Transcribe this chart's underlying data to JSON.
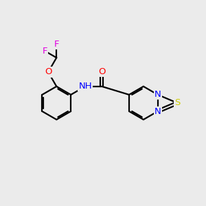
{
  "background_color": "#ebebeb",
  "bond_color": "#000000",
  "atom_colors": {
    "F": "#e000e0",
    "O": "#ff0000",
    "N": "#0000ff",
    "S": "#cccc00"
  },
  "lw": 1.6,
  "fontsize": 9.5,
  "figure_size": [
    3.0,
    3.0
  ],
  "dpi": 100
}
